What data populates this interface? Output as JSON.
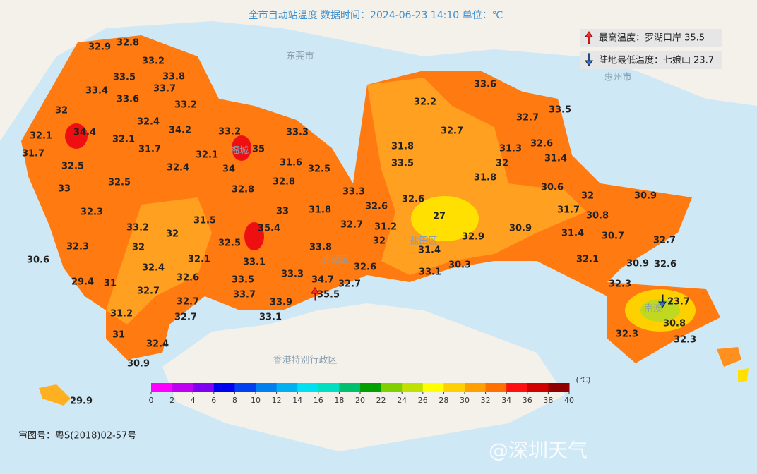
{
  "title": "全市自动站温度  数据时间：2024-06-23 14:10  单位：℃",
  "extremes": {
    "max": "最高温度：罗湖口岸 35.5",
    "min": "陆地最低温度：七娘山 23.7"
  },
  "places": [
    "东莞市",
    "惠州市",
    "香港特别行政区",
    "福城",
    "罗湖区",
    "盐田区",
    "南澳"
  ],
  "stations": [
    32.9,
    32.8,
    33.2,
    33.5,
    33.8,
    33.4,
    33.7,
    33.6,
    32,
    33.2,
    32.4,
    34.4,
    32.1,
    32.1,
    34.2,
    33.2,
    33.3,
    31.7,
    31.7,
    32.1,
    35,
    32.5,
    32.4,
    34,
    31.6,
    32.5,
    33,
    32.5,
    32.8,
    32.8,
    33.3,
    32.3,
    33,
    31.8,
    32.6,
    32.6,
    31.5,
    33.2,
    32,
    35.4,
    32.7,
    31.2,
    32.3,
    32,
    32.5,
    33.8,
    32,
    27,
    32.9,
    30.6,
    32.1,
    33.1,
    31.4,
    32.4,
    32.6,
    33.3,
    30.3,
    33.1,
    29.4,
    31,
    32.6,
    33.5,
    34.7,
    32.7,
    33.7,
    35.5,
    32.7,
    32.7,
    33.9,
    32.7,
    33.1,
    31.2,
    31,
    32.4,
    30.9,
    29.9,
    33.6,
    32.2,
    32.7,
    33.5,
    32.7,
    32.6,
    31.8,
    31.3,
    31.4,
    33.5,
    32,
    31.8,
    30.6,
    32,
    30.9,
    31.7,
    30.8,
    30.9,
    31.4,
    30.7,
    32.7,
    32.1,
    30.9,
    32.6,
    32.3,
    23.7,
    30.8,
    32.3,
    32.3
  ],
  "colorbar": {
    "unit": "(℃)",
    "ticks": [
      0,
      2,
      4,
      6,
      8,
      10,
      12,
      14,
      16,
      18,
      20,
      22,
      24,
      26,
      28,
      30,
      32,
      34,
      36,
      38,
      40
    ],
    "colors": [
      "#ff00ff",
      "#c000f0",
      "#8000f0",
      "#0000f0",
      "#0040f0",
      "#0080f0",
      "#00b0f0",
      "#00e0f0",
      "#00e0c0",
      "#00c070",
      "#00a000",
      "#80d000",
      "#c0e000",
      "#ffff00",
      "#ffd000",
      "#ffa000",
      "#ff7000",
      "#ff1010",
      "#d00000",
      "#900000"
    ]
  },
  "footer": "审图号：粤S(2018)02-57号",
  "watermark": "@深圳天气"
}
